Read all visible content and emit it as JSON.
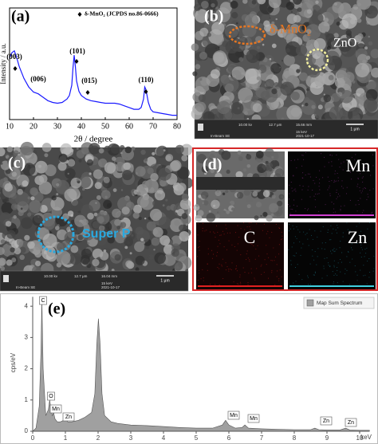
{
  "chart_data": [
    {
      "type": "line",
      "panel_label": "(a)",
      "x_label": "2θ / degree",
      "y_label": "Intensity / a.u.",
      "marker_legend": "δ-MnO₂ (JCPDS no.86-0666)",
      "annotations": [
        "(003)",
        "(006)",
        "(101)",
        "(015)",
        "(110)"
      ],
      "x": [
        10,
        11,
        12,
        13,
        14,
        16,
        18,
        20,
        21,
        22,
        24,
        26,
        28,
        30,
        32,
        34,
        35,
        36,
        36.5,
        37,
        37.5,
        38,
        39,
        40,
        42,
        44,
        46,
        48,
        50,
        52,
        54,
        56,
        58,
        60,
        62,
        64,
        65,
        66,
        66.5,
        67,
        68,
        69,
        70,
        72,
        74,
        76,
        78,
        80
      ],
      "series": [
        {
          "color": "#1a1aff",
          "values": [
            72,
            78,
            80,
            72,
            62,
            48,
            38,
            32,
            31,
            30,
            26,
            22,
            20,
            19,
            20,
            24,
            28,
            40,
            60,
            75,
            62,
            45,
            33,
            28,
            24,
            22,
            21,
            20,
            19,
            19,
            19,
            18,
            16,
            14,
            12,
            12,
            14,
            24,
            38,
            35,
            20,
            12,
            9,
            8,
            7,
            6,
            5,
            5
          ]
        }
      ],
      "xlim": [
        10,
        80
      ],
      "ylim": [
        0,
        130
      ],
      "xticks": [
        10,
        20,
        30,
        40,
        50,
        60,
        70,
        80
      ]
    },
    {
      "type": "area",
      "panel_label": "(e)",
      "x_label": "keV",
      "y_label": "cps/eV",
      "legend": "Map Sum Spectrum",
      "peak_labels": [
        "C",
        "O",
        "Mn",
        "Zn",
        "Mn",
        "Mn",
        "Zn",
        "Zn"
      ],
      "x": [
        0,
        0.1,
        0.2,
        0.25,
        0.28,
        0.32,
        0.4,
        0.48,
        0.52,
        0.56,
        0.6,
        0.64,
        0.68,
        0.75,
        0.85,
        0.95,
        1.01,
        1.07,
        1.2,
        1.4,
        1.6,
        1.8,
        1.9,
        1.96,
        2.01,
        2.06,
        2.12,
        2.2,
        2.4,
        2.6,
        3,
        3.5,
        4,
        4.5,
        5,
        5.5,
        5.8,
        5.9,
        6,
        6.2,
        6.4,
        6.49,
        6.6,
        7,
        7.5,
        8,
        8.5,
        8.63,
        8.75,
        9,
        9.4,
        9.57,
        9.7,
        10,
        10.3
      ],
      "series": [
        {
          "color": "#a0a0a0",
          "values": [
            0,
            0.1,
            0.8,
            2.5,
            4.2,
            2.0,
            0.5,
            0.7,
            1.0,
            0.7,
            0.5,
            0.6,
            0.4,
            0.3,
            0.3,
            0.35,
            0.45,
            0.3,
            0.3,
            0.35,
            0.45,
            0.6,
            1.2,
            2.8,
            3.6,
            2.8,
            1.2,
            0.5,
            0.3,
            0.25,
            0.2,
            0.18,
            0.15,
            0.12,
            0.1,
            0.1,
            0.2,
            0.35,
            0.2,
            0.1,
            0.12,
            0.2,
            0.1,
            0.08,
            0.06,
            0.05,
            0.05,
            0.1,
            0.05,
            0.04,
            0.04,
            0.1,
            0.04,
            0.03,
            0.03
          ]
        }
      ],
      "xlim": [
        0,
        10.3
      ],
      "ylim": [
        0,
        4.3
      ],
      "xticks": [
        0,
        1,
        2,
        3,
        4,
        5,
        6,
        7,
        8,
        9,
        10
      ],
      "yticks": [
        0,
        1,
        2,
        3,
        4
      ]
    }
  ],
  "panels": {
    "b": {
      "label": "(b)",
      "annotations": [
        "δ-MnO₂",
        "ZnO"
      ],
      "info": [
        "10.00 kv",
        "12.7 μm",
        "15.66 mm",
        "15 keV",
        "2021-10-17",
        "In-Beam SE"
      ],
      "scale_bar": "1 μm"
    },
    "c": {
      "label": "(c)",
      "annotations": [
        "Super P"
      ],
      "info": [
        "10.00 kv",
        "12.7 μm",
        "16.04 mm",
        "15 keV",
        "2021-10-17",
        "In-Beam SE"
      ],
      "scale_bar": "1 μm"
    },
    "d": {
      "label": "(d)",
      "maps": [
        "Mn",
        "C",
        "Zn"
      ]
    }
  }
}
